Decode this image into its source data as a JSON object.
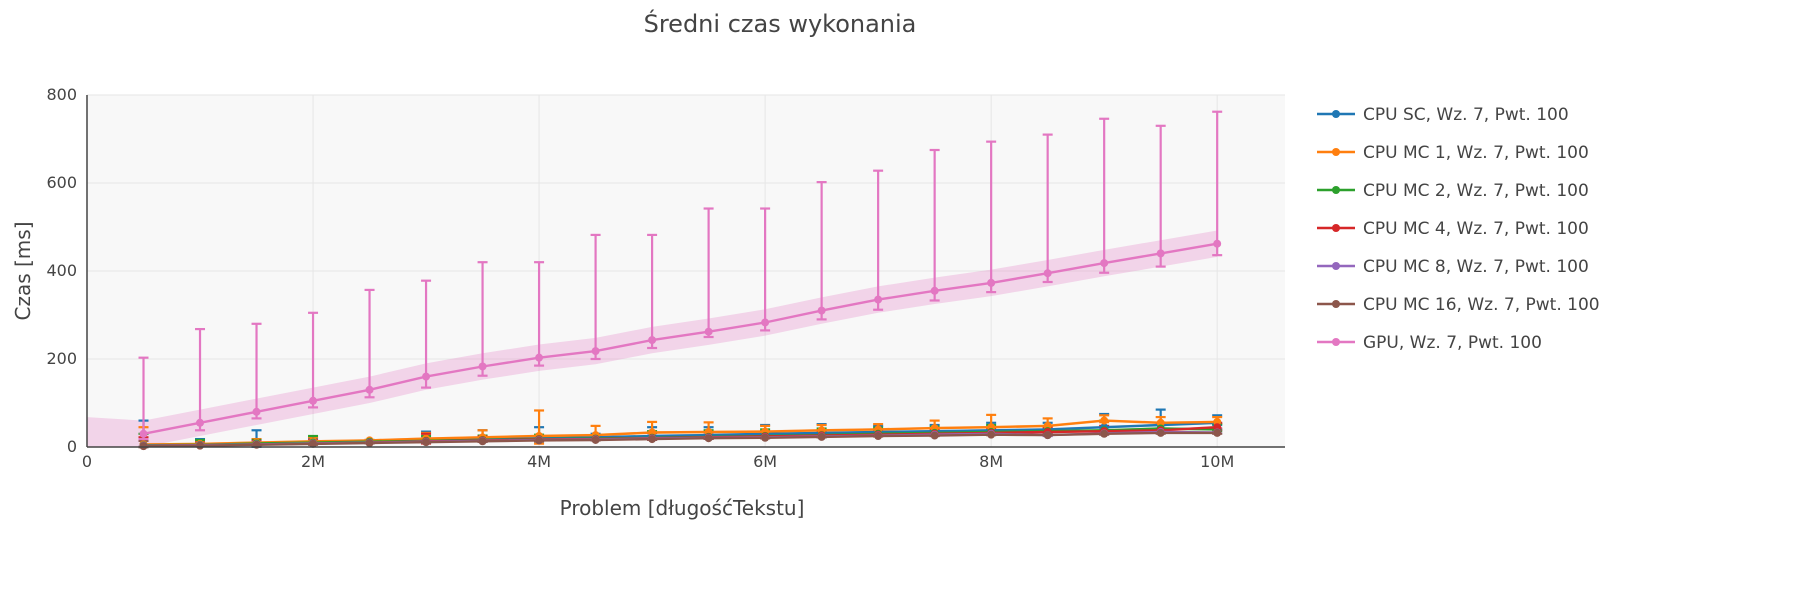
{
  "chart_data": {
    "type": "line",
    "title": "Średni czas wykonania",
    "xlabel": "Problem [długośćTekstu]",
    "ylabel": "Czas [ms]",
    "xlim": [
      0,
      10600000
    ],
    "ylim": [
      0,
      800
    ],
    "x_ticks": [
      0,
      2000000,
      4000000,
      6000000,
      8000000,
      10000000
    ],
    "x_tick_labels": [
      "0",
      "2M",
      "4M",
      "6M",
      "8M",
      "10M"
    ],
    "y_ticks": [
      0,
      200,
      400,
      600,
      800
    ],
    "y_tick_labels": [
      "0",
      "200",
      "400",
      "600",
      "800"
    ],
    "grid": true,
    "legend_position": "right",
    "x": [
      500000,
      1000000,
      1500000,
      2000000,
      2500000,
      3000000,
      3500000,
      4000000,
      4500000,
      5000000,
      5500000,
      6000000,
      6500000,
      7000000,
      7500000,
      8000000,
      8500000,
      9000000,
      9500000,
      10000000
    ],
    "series": [
      {
        "name": "CPU SC, Wz. 7, Pwt. 100",
        "color": "#1f77b4",
        "values": [
          5,
          6,
          9,
          11,
          13,
          16,
          18,
          20,
          22,
          25,
          27,
          30,
          32,
          34,
          36,
          38,
          40,
          45,
          50,
          55
        ],
        "error_upper": [
          60,
          18,
          38,
          20,
          16,
          35,
          38,
          45,
          30,
          45,
          45,
          50,
          52,
          48,
          50,
          55,
          55,
          75,
          85,
          72
        ],
        "band": 3
      },
      {
        "name": "CPU MC 1, Wz. 7, Pwt. 100",
        "color": "#ff7f0e",
        "values": [
          6,
          7,
          10,
          13,
          15,
          19,
          22,
          25,
          27,
          33,
          34,
          35,
          38,
          40,
          43,
          45,
          48,
          60,
          55,
          57
        ],
        "error_upper": [
          45,
          12,
          18,
          22,
          16,
          32,
          38,
          83,
          48,
          57,
          56,
          48,
          50,
          52,
          60,
          73,
          65,
          72,
          68,
          68
        ],
        "band": 3
      },
      {
        "name": "CPU MC 2, Wz. 7, Pwt. 100",
        "color": "#2ca02c",
        "values": [
          4,
          5,
          8,
          10,
          12,
          14,
          16,
          18,
          19,
          21,
          23,
          25,
          27,
          30,
          32,
          34,
          36,
          38,
          42,
          40
        ],
        "error_upper": [
          30,
          16,
          16,
          25,
          14,
          25,
          26,
          28,
          26,
          36,
          38,
          40,
          42,
          44,
          46,
          50,
          48,
          60,
          55,
          52
        ],
        "band": 3
      },
      {
        "name": "CPU MC 4, Wz. 7, Pwt. 100",
        "color": "#d62728",
        "values": [
          3,
          4,
          6,
          8,
          10,
          13,
          15,
          17,
          18,
          20,
          22,
          24,
          26,
          28,
          30,
          32,
          34,
          36,
          38,
          45
        ],
        "error_upper": [
          22,
          10,
          14,
          16,
          14,
          30,
          24,
          24,
          24,
          32,
          34,
          34,
          36,
          38,
          40,
          42,
          44,
          48,
          50,
          55
        ],
        "band": 3
      },
      {
        "name": "CPU MC 8, Wz. 7, Pwt. 100",
        "color": "#9467bd",
        "values": [
          3,
          4,
          6,
          8,
          10,
          12,
          14,
          16,
          17,
          19,
          21,
          22,
          24,
          26,
          28,
          30,
          27,
          31,
          34,
          33
        ],
        "error_upper": [
          18,
          9,
          12,
          14,
          14,
          20,
          22,
          24,
          22,
          26,
          28,
          28,
          30,
          32,
          34,
          36,
          34,
          40,
          42,
          40
        ],
        "band": 2
      },
      {
        "name": "CPU MC 16, Wz. 7, Pwt. 100",
        "color": "#8c564b",
        "values": [
          2,
          3,
          5,
          7,
          9,
          11,
          13,
          15,
          16,
          18,
          20,
          21,
          23,
          25,
          26,
          28,
          27,
          30,
          32,
          32
        ],
        "error_upper": [
          14,
          8,
          10,
          12,
          12,
          16,
          18,
          20,
          20,
          22,
          24,
          25,
          27,
          29,
          30,
          32,
          30,
          36,
          38,
          38
        ],
        "band": 2
      },
      {
        "name": "GPU, Wz. 7, Pwt. 100",
        "color": "#e377c2",
        "values": [
          30,
          55,
          80,
          105,
          130,
          160,
          183,
          203,
          218,
          243,
          262,
          283,
          310,
          335,
          355,
          373,
          395,
          418,
          440,
          462
        ],
        "error_upper": [
          203,
          268,
          280,
          305,
          357,
          378,
          420,
          420,
          482,
          482,
          542,
          542,
          602,
          628,
          675,
          694,
          710,
          746,
          730,
          762
        ],
        "error_lower": [
          18,
          38,
          65,
          90,
          113,
          135,
          162,
          185,
          200,
          225,
          250,
          265,
          290,
          312,
          333,
          352,
          375,
          396,
          410,
          436
        ],
        "band": 30
      }
    ]
  }
}
